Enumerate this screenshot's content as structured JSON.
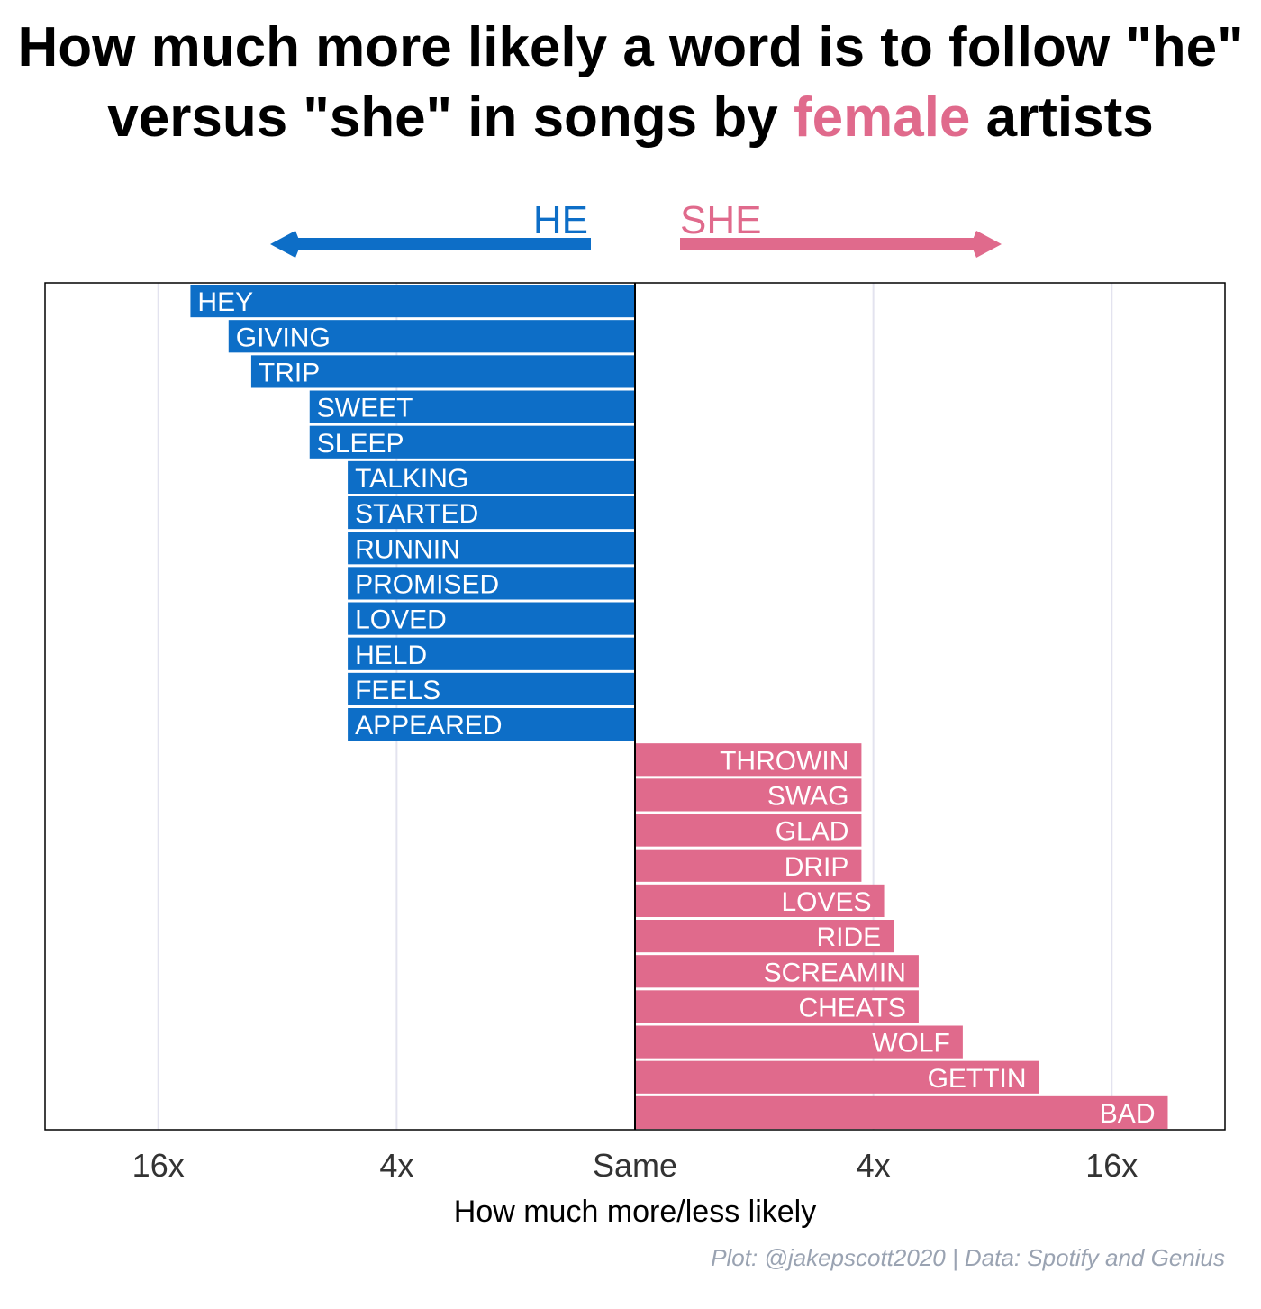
{
  "title": {
    "line1": "How much more likely a word is to follow \"he\"",
    "line2_before": "versus \"she\" in songs by ",
    "line2_highlight": "female",
    "line2_after": " artists"
  },
  "colors": {
    "he": "#0d6ec7",
    "she": "#e06a8c",
    "grid": "#e3e3ef",
    "axis_text": "#333333",
    "caption": "#9aa3b2"
  },
  "chart_data": {
    "type": "bar",
    "orientation": "horizontal",
    "xlabel": "How much more/less likely",
    "x_scale": "log2",
    "x_ticks": [
      {
        "label": "16x",
        "value": -4
      },
      {
        "label": "4x",
        "value": -2
      },
      {
        "label": "Same",
        "value": 0
      },
      {
        "label": "4x",
        "value": 2
      },
      {
        "label": "16x",
        "value": 4
      }
    ],
    "xlim": [
      -4.95,
      4.95
    ],
    "direction_labels": {
      "he": "HE",
      "she": "SHE"
    },
    "grid": true,
    "legend": "none",
    "series": [
      {
        "name": "HE",
        "words": [
          "HEY",
          "GIVING",
          "TRIP",
          "SWEET",
          "SLEEP",
          "TALKING",
          "STARTED",
          "RUNNIN",
          "PROMISED",
          "LOVED",
          "HELD",
          "FEELS",
          "APPEARED"
        ],
        "values": [
          -3.73,
          -3.41,
          -3.22,
          -2.73,
          -2.73,
          -2.41,
          -2.41,
          -2.41,
          -2.41,
          -2.41,
          -2.41,
          -2.41,
          -2.41
        ]
      },
      {
        "name": "SHE",
        "words": [
          "THROWIN",
          "SWAG",
          "GLAD",
          "DRIP",
          "LOVES",
          "RIDE",
          "SCREAMIN",
          "CHEATS",
          "WOLF",
          "GETTIN",
          "BAD"
        ],
        "values": [
          1.9,
          1.9,
          1.9,
          1.9,
          2.09,
          2.17,
          2.38,
          2.38,
          2.75,
          3.39,
          4.47
        ]
      }
    ]
  },
  "caption": "Plot: @jakepscott2020 | Data: Spotify and Genius"
}
